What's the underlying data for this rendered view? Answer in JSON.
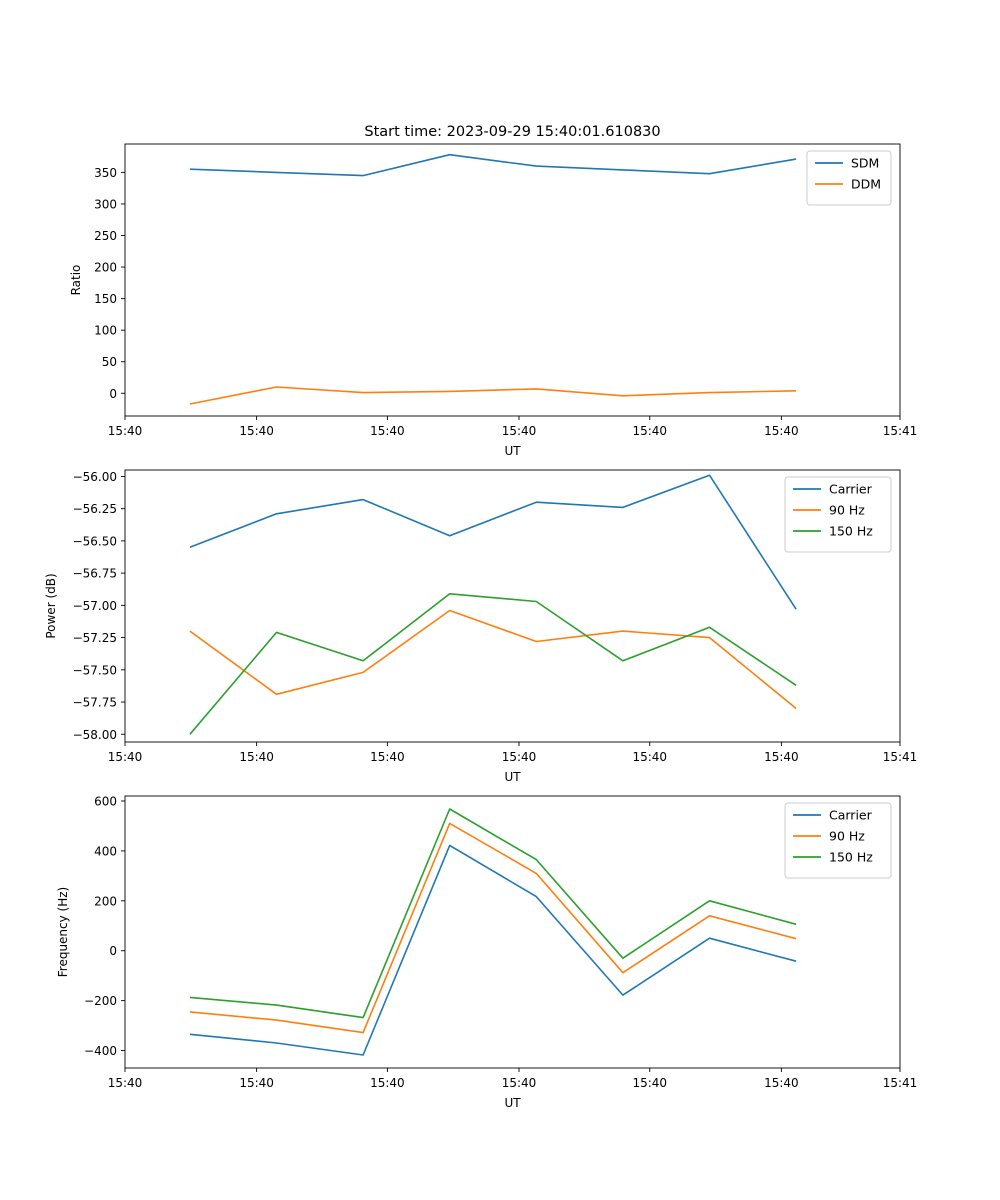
{
  "figure": {
    "title": "Start time: 2023-09-29 15:40:01.610830"
  },
  "colors": {
    "blue": "#1f77b4",
    "orange": "#ff7f0e",
    "green": "#2ca02c"
  },
  "chart_data": [
    {
      "type": "line",
      "title": "Start time: 2023-09-29 15:40:01.610830",
      "xlabel": "UT",
      "ylabel": "Ratio",
      "x": [
        1,
        2,
        3,
        4,
        5,
        6,
        7,
        8
      ],
      "xlim": [
        0.25,
        9.2
      ],
      "xticks": [
        0.25,
        1.77,
        3.28,
        4.8,
        6.31,
        7.83,
        9.2
      ],
      "xticklabels": [
        "15:40",
        "15:40",
        "15:40",
        "15:40",
        "15:40",
        "15:40",
        "15:41"
      ],
      "ylim": [
        -36,
        395
      ],
      "yticks": [
        0,
        50,
        100,
        150,
        200,
        250,
        300,
        350
      ],
      "yticklabels": [
        "0",
        "50",
        "100",
        "150",
        "200",
        "250",
        "300",
        "350"
      ],
      "legend_position": "top-right",
      "series": [
        {
          "name": "SDM",
          "color_key": "blue",
          "values": [
            355,
            350,
            345,
            378,
            360,
            354,
            348,
            371
          ]
        },
        {
          "name": "DDM",
          "color_key": "orange",
          "values": [
            -17,
            10,
            1,
            3,
            7,
            -4,
            1,
            4
          ]
        }
      ]
    },
    {
      "type": "line",
      "title": "",
      "xlabel": "UT",
      "ylabel": "Power (dB)",
      "x": [
        1,
        2,
        3,
        4,
        5,
        6,
        7,
        8
      ],
      "xlim": [
        0.25,
        9.2
      ],
      "xticks": [
        0.25,
        1.77,
        3.28,
        4.8,
        6.31,
        7.83,
        9.2
      ],
      "xticklabels": [
        "15:40",
        "15:40",
        "15:40",
        "15:40",
        "15:40",
        "15:40",
        "15:41"
      ],
      "ylim": [
        -58.06,
        -55.95
      ],
      "yticks": [
        -58.0,
        -57.75,
        -57.5,
        -57.25,
        -57.0,
        -56.75,
        -56.5,
        -56.25,
        -56.0
      ],
      "yticklabels": [
        "−58.00",
        "−57.75",
        "−57.50",
        "−57.25",
        "−57.00",
        "−56.75",
        "−56.50",
        "−56.25",
        "−56.00"
      ],
      "legend_position": "top-right",
      "series": [
        {
          "name": "Carrier",
          "color_key": "blue",
          "values": [
            -56.55,
            -56.29,
            -56.18,
            -56.46,
            -56.2,
            -56.24,
            -55.99,
            -57.03
          ]
        },
        {
          "name": "90 Hz",
          "color_key": "orange",
          "values": [
            -57.2,
            -57.69,
            -57.52,
            -57.04,
            -57.28,
            -57.2,
            -57.25,
            -57.8
          ]
        },
        {
          "name": "150 Hz",
          "color_key": "green",
          "values": [
            -58.0,
            -57.21,
            -57.43,
            -56.91,
            -56.97,
            -57.43,
            -57.17,
            -57.62
          ]
        }
      ]
    },
    {
      "type": "line",
      "title": "",
      "xlabel": "UT",
      "ylabel": "Frequency (Hz)",
      "x": [
        1,
        2,
        3,
        4,
        5,
        6,
        7,
        8
      ],
      "xlim": [
        0.25,
        9.2
      ],
      "xticks": [
        0.25,
        1.77,
        3.28,
        4.8,
        6.31,
        7.83,
        9.2
      ],
      "xticklabels": [
        "15:40",
        "15:40",
        "15:40",
        "15:40",
        "15:40",
        "15:40",
        "15:41"
      ],
      "ylim": [
        -470,
        620
      ],
      "yticks": [
        -400,
        -200,
        0,
        200,
        400,
        600
      ],
      "yticklabels": [
        "−400",
        "−200",
        "0",
        "200",
        "400",
        "600"
      ],
      "legend_position": "top-right",
      "series": [
        {
          "name": "Carrier",
          "color_key": "blue",
          "values": [
            -335,
            -370,
            -418,
            422,
            217,
            -178,
            50,
            -42
          ]
        },
        {
          "name": "90 Hz",
          "color_key": "orange",
          "values": [
            -245,
            -278,
            -328,
            510,
            310,
            -88,
            140,
            48
          ]
        },
        {
          "name": "150 Hz",
          "color_key": "green",
          "values": [
            -187,
            -218,
            -268,
            568,
            365,
            -30,
            200,
            106
          ]
        }
      ]
    }
  ]
}
